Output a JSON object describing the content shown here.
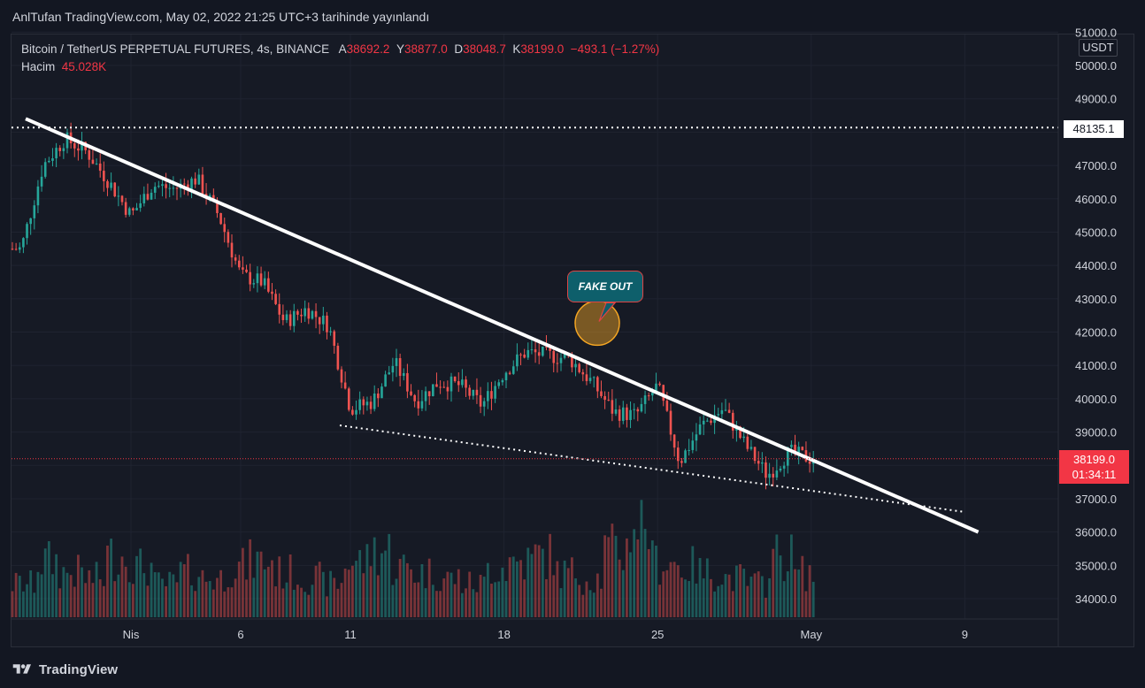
{
  "caption": "AnlTufan TradingView.com, May 02, 2022 21:25 UTC+3 tarihinde yayınlandı",
  "legend": {
    "symbol": "Bitcoin / TetherUS PERPETUAL FUTURES, 4s, BINANCE",
    "open_label": "A",
    "open": "38692.2",
    "high_label": "Y",
    "high": "38877.0",
    "low_label": "D",
    "low": "38048.7",
    "close_label": "K",
    "close": "38199.0",
    "change": "−493.1 (−1.27%)",
    "volume_label": "Hacim",
    "volume": "45.028K"
  },
  "price_axis": {
    "currency": "USDT",
    "marked_level": "48135.1",
    "last_price": "38199.0",
    "countdown": "01:34:11"
  },
  "annotation": {
    "text": "FAKE OUT"
  },
  "footer": {
    "brand": "TradingView"
  },
  "colors": {
    "up": "#26a69a",
    "down": "#ef5350",
    "background": "#131722",
    "trendline": "#ffffff"
  },
  "chart_data": {
    "type": "candlestick",
    "title": "Bitcoin / TetherUS PERPETUAL FUTURES, 4s, BINANCE",
    "x_tick_labels": [
      "Nis",
      "6",
      "11",
      "18",
      "25",
      "May",
      "9"
    ],
    "y_tick_labels": [
      "34000.0",
      "35000.0",
      "36000.0",
      "37000.0",
      "38000.0",
      "39000.0",
      "40000.0",
      "41000.0",
      "42000.0",
      "43000.0",
      "44000.0",
      "45000.0",
      "46000.0",
      "47000.0",
      "48000.0",
      "49000.0",
      "50000.0",
      "51000.0"
    ],
    "ylim": [
      33700,
      51100
    ],
    "grid": true,
    "price_path": [
      {
        "date": "2022-03-27",
        "price": 44500
      },
      {
        "date": "2022-03-28",
        "price": 47000
      },
      {
        "date": "2022-03-29",
        "price": 47800
      },
      {
        "date": "2022-03-30",
        "price": 47400
      },
      {
        "date": "2022-03-31",
        "price": 46500
      },
      {
        "date": "2022-04-01",
        "price": 45500
      },
      {
        "date": "2022-04-02",
        "price": 46400
      },
      {
        "date": "2022-04-03",
        "price": 46300
      },
      {
        "date": "2022-04-04",
        "price": 46600
      },
      {
        "date": "2022-04-05",
        "price": 45500
      },
      {
        "date": "2022-04-06",
        "price": 43700
      },
      {
        "date": "2022-04-07",
        "price": 43500
      },
      {
        "date": "2022-04-08",
        "price": 42300
      },
      {
        "date": "2022-04-09",
        "price": 42700
      },
      {
        "date": "2022-04-10",
        "price": 42200
      },
      {
        "date": "2022-04-11",
        "price": 39700
      },
      {
        "date": "2022-04-12",
        "price": 39900
      },
      {
        "date": "2022-04-13",
        "price": 41100
      },
      {
        "date": "2022-04-14",
        "price": 39900
      },
      {
        "date": "2022-04-15",
        "price": 40500
      },
      {
        "date": "2022-04-16",
        "price": 40400
      },
      {
        "date": "2022-04-17",
        "price": 39800
      },
      {
        "date": "2022-04-18",
        "price": 40800
      },
      {
        "date": "2022-04-19",
        "price": 41400
      },
      {
        "date": "2022-04-20",
        "price": 41300
      },
      {
        "date": "2022-04-21",
        "price": 41200
      },
      {
        "date": "2022-04-22",
        "price": 40500
      },
      {
        "date": "2022-04-23",
        "price": 39600
      },
      {
        "date": "2022-04-24",
        "price": 39500
      },
      {
        "date": "2022-04-25",
        "price": 40400
      },
      {
        "date": "2022-04-26",
        "price": 38100
      },
      {
        "date": "2022-04-27",
        "price": 39200
      },
      {
        "date": "2022-04-28",
        "price": 39700
      },
      {
        "date": "2022-04-29",
        "price": 38600
      },
      {
        "date": "2022-04-30",
        "price": 37700
      },
      {
        "date": "2022-05-01",
        "price": 38400
      },
      {
        "date": "2022-05-02",
        "price": 38199
      }
    ],
    "volume_path": [
      0.3,
      0.5,
      0.4,
      0.35,
      0.55,
      0.45,
      0.3,
      0.4,
      0.35,
      0.45,
      0.5,
      0.4,
      0.35,
      0.3,
      0.5,
      0.6,
      0.45,
      0.4,
      0.35,
      0.3,
      0.45,
      0.5,
      0.55,
      0.4,
      0.35,
      0.6,
      0.85,
      0.5,
      0.45,
      0.4,
      0.35,
      0.3,
      0.55,
      0.4
    ],
    "annotations": [
      {
        "type": "resistance_trendline",
        "from": {
          "date": "2022-03-27",
          "price": 48400
        },
        "to": {
          "date": "2022-05-08",
          "price": 36000
        }
      },
      {
        "type": "support_trendline",
        "from": {
          "date": "2022-04-11",
          "price": 39200
        },
        "to": {
          "date": "2022-05-08",
          "price": 36600
        }
      },
      {
        "type": "horizontal_level",
        "price": 48135.1
      },
      {
        "type": "label",
        "text": "FAKE OUT",
        "date": "2022-04-21",
        "price": 42400
      }
    ]
  }
}
